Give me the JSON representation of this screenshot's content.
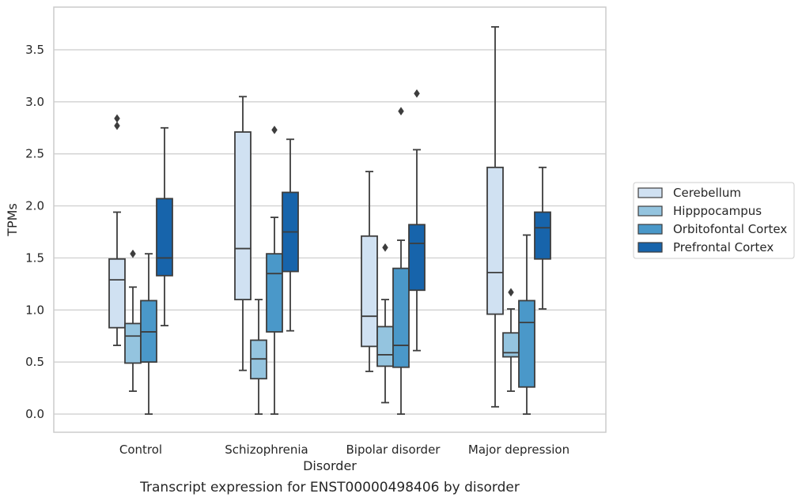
{
  "chart_data": {
    "type": "box",
    "title": "",
    "caption": "Transcript expression for ENST00000498406 by disorder",
    "xlabel": "Disorder",
    "ylabel": "TPMs",
    "ylim": [
      -0.18,
      3.92
    ],
    "yticks": [
      "0.0",
      "0.5",
      "1.0",
      "1.5",
      "2.0",
      "2.5",
      "3.0",
      "3.5"
    ],
    "ytick_values": [
      0,
      0.5,
      1.0,
      1.5,
      2.0,
      2.5,
      3.0,
      3.5
    ],
    "grid": true,
    "legend_position": "right",
    "categories": [
      "Control",
      "Schizophrenia",
      "Bipolar disorder",
      "Major depression"
    ],
    "series": [
      {
        "name": "Cerebellum",
        "color": "#d0e1f2",
        "boxes": [
          {
            "whisker_low": 0.66,
            "q1": 0.83,
            "median": 1.29,
            "q3": 1.49,
            "whisker_high": 1.94,
            "outliers": [
              2.77,
              2.84
            ]
          },
          {
            "whisker_low": 0.42,
            "q1": 1.1,
            "median": 1.59,
            "q3": 2.71,
            "whisker_high": 3.05,
            "outliers": []
          },
          {
            "whisker_low": 0.41,
            "q1": 0.65,
            "median": 0.94,
            "q3": 1.71,
            "whisker_high": 2.33,
            "outliers": []
          },
          {
            "whisker_low": 0.07,
            "q1": 0.96,
            "median": 1.36,
            "q3": 2.37,
            "whisker_high": 3.72,
            "outliers": []
          }
        ]
      },
      {
        "name": "Hipppocampus",
        "color": "#94c4df",
        "boxes": [
          {
            "whisker_low": 0.22,
            "q1": 0.49,
            "median": 0.75,
            "q3": 0.87,
            "whisker_high": 1.22,
            "outliers": [
              1.54
            ]
          },
          {
            "whisker_low": 0.0,
            "q1": 0.34,
            "median": 0.53,
            "q3": 0.71,
            "whisker_high": 1.1,
            "outliers": []
          },
          {
            "whisker_low": 0.11,
            "q1": 0.46,
            "median": 0.57,
            "q3": 0.84,
            "whisker_high": 1.1,
            "outliers": [
              1.6
            ]
          },
          {
            "whisker_low": 0.22,
            "q1": 0.55,
            "median": 0.59,
            "q3": 0.78,
            "whisker_high": 1.01,
            "outliers": [
              1.17
            ]
          }
        ]
      },
      {
        "name": "Orbitofontal Cortex",
        "color": "#4a98c9",
        "boxes": [
          {
            "whisker_low": 0.0,
            "q1": 0.5,
            "median": 0.79,
            "q3": 1.09,
            "whisker_high": 1.54,
            "outliers": []
          },
          {
            "whisker_low": 0.0,
            "q1": 0.79,
            "median": 1.35,
            "q3": 1.54,
            "whisker_high": 1.89,
            "outliers": [
              2.73
            ]
          },
          {
            "whisker_low": 0.0,
            "q1": 0.45,
            "median": 0.66,
            "q3": 1.4,
            "whisker_high": 1.67,
            "outliers": [
              2.91
            ]
          },
          {
            "whisker_low": 0.0,
            "q1": 0.26,
            "median": 0.88,
            "q3": 1.09,
            "whisker_high": 1.72,
            "outliers": []
          }
        ]
      },
      {
        "name": "Prefrontal Cortex",
        "color": "#1764ab",
        "boxes": [
          {
            "whisker_low": 0.85,
            "q1": 1.33,
            "median": 1.5,
            "q3": 2.07,
            "whisker_high": 2.75,
            "outliers": []
          },
          {
            "whisker_low": 0.8,
            "q1": 1.37,
            "median": 1.75,
            "q3": 2.13,
            "whisker_high": 2.64,
            "outliers": []
          },
          {
            "whisker_low": 0.61,
            "q1": 1.19,
            "median": 1.64,
            "q3": 1.82,
            "whisker_high": 2.54,
            "outliers": [
              3.08
            ]
          },
          {
            "whisker_low": 1.01,
            "q1": 1.49,
            "median": 1.79,
            "q3": 1.94,
            "whisker_high": 2.37,
            "outliers": []
          }
        ]
      }
    ]
  }
}
